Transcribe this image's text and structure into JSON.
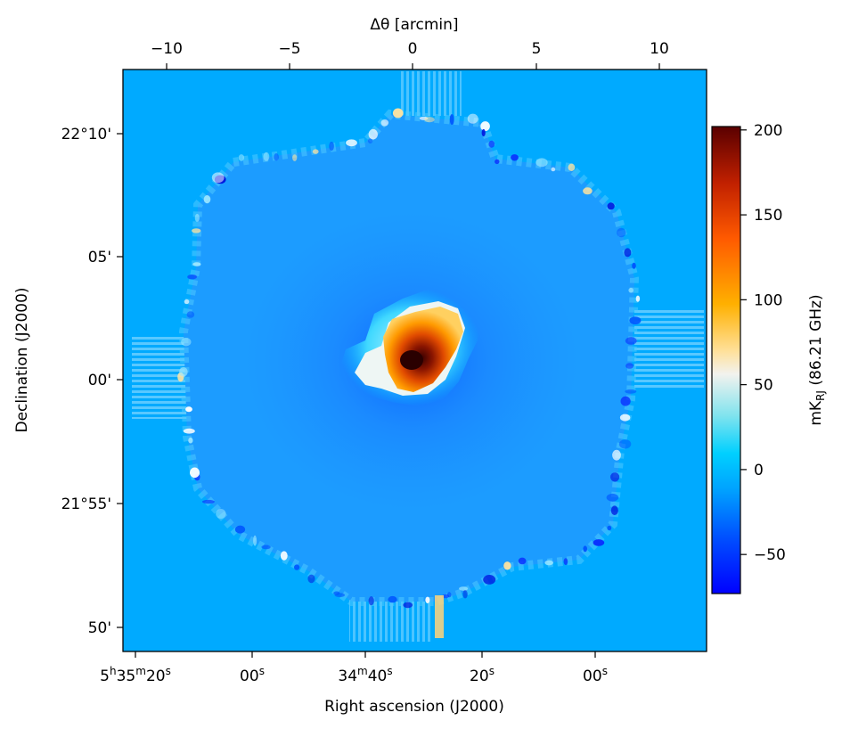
{
  "chart_data": {
    "type": "heatmap",
    "title": "",
    "xlabel": "Right ascension (J2000)",
    "ylabel": "Declination (J2000)",
    "top_xlabel": "Δθ [arcmin]",
    "colorbar_label": "mK_RJ (86.21 GHz)",
    "colorbar_label_parts": {
      "main": "mK",
      "sub": "RJ",
      "rest": " (86.21 GHz)"
    },
    "colormap": [
      "#0000ff",
      "#006eff",
      "#00b4ff",
      "#00dcff",
      "#f2f2ee",
      "#ffc000",
      "#ff5200",
      "#5a0000"
    ],
    "background_color": "#00aaff",
    "bottom_axis": {
      "ticks": [
        {
          "base": "5",
          "sup1": "h",
          "mid": "35",
          "sup2": "m",
          "num": "20",
          "sup3": "s"
        },
        {
          "base": "",
          "sup1": "",
          "mid": "",
          "sup2": "",
          "num": "00",
          "sup3": "s"
        },
        {
          "base": "",
          "sup1": "",
          "mid": "34",
          "sup2": "m",
          "num": "40",
          "sup3": "s"
        },
        {
          "base": "",
          "sup1": "",
          "mid": "",
          "sup2": "",
          "num": "20",
          "sup3": "s"
        },
        {
          "base": "",
          "sup1": "",
          "mid": "",
          "sup2": "",
          "num": "00",
          "sup3": "s"
        }
      ]
    },
    "left_axis": {
      "ticks": [
        "22°10'",
        "05'",
        "00'",
        "21°55'",
        "50'"
      ]
    },
    "top_axis": {
      "ticks": [
        "−10",
        "−5",
        "0",
        "5",
        "10"
      ],
      "values": [
        -10,
        -5,
        0,
        5,
        10
      ],
      "range": [
        -11.8,
        11.8
      ]
    },
    "colorbar": {
      "ticks": [
        "200",
        "150",
        "100",
        "50",
        "0",
        "−50"
      ],
      "values": [
        200,
        150,
        100,
        50,
        0,
        -50
      ],
      "range": [
        -73,
        202
      ]
    },
    "map_features": {
      "peak_value": 200,
      "minimum_value": -73,
      "source": "compact bright emission near map center, peak slightly south-west of center",
      "mapped_region": "octagonal mosaic with noisy striped edges; uniform fill outside"
    }
  }
}
